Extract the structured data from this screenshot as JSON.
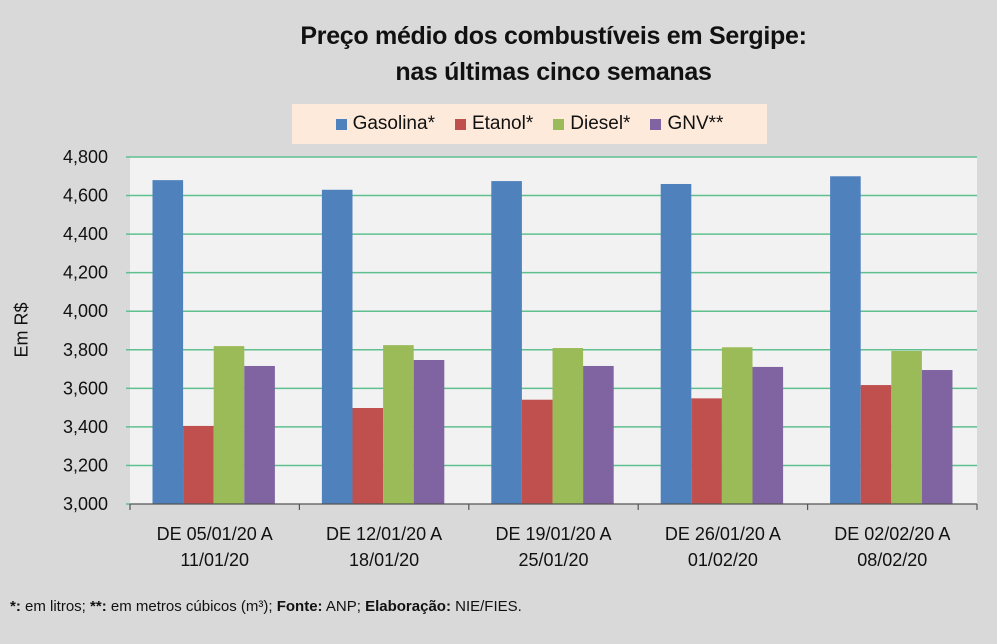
{
  "chart_data": {
    "type": "bar",
    "title": "Preço médio dos combustíveis em Sergipe:",
    "subtitle": "nas últimas cinco semanas",
    "xlabel": "",
    "ylabel": "Em R$",
    "ylim": [
      3000,
      4800
    ],
    "ytick_step": 200,
    "ytick_labels": [
      "3,000",
      "3,200",
      "3,400",
      "3,600",
      "3,800",
      "4,000",
      "4,200",
      "4,400",
      "4,600",
      "4,800"
    ],
    "grid": true,
    "legend_position": "top-center",
    "categories": [
      [
        "DE 05/01/20 A",
        "11/01/20"
      ],
      [
        "DE 12/01/20 A",
        "18/01/20"
      ],
      [
        "DE 19/01/20 A",
        "25/01/20"
      ],
      [
        "DE 26/01/20 A",
        "01/02/20"
      ],
      [
        "DE 02/02/20 A",
        "08/02/20"
      ]
    ],
    "series": [
      {
        "name": "Gasolina*",
        "color": "#4f81bd",
        "values": [
          4680,
          4630,
          4675,
          4660,
          4700
        ]
      },
      {
        "name": "Etanol*",
        "color": "#c0504d",
        "values": [
          3405,
          3498,
          3541,
          3548,
          3617
        ]
      },
      {
        "name": "Diesel*",
        "color": "#9bbb59",
        "values": [
          3819,
          3824,
          3809,
          3813,
          3794
        ]
      },
      {
        "name": "GNV**",
        "color": "#8064a2",
        "values": [
          3716,
          3747,
          3716,
          3711,
          3695
        ]
      }
    ]
  },
  "colors": {
    "background": "#d9d9d9",
    "plot_background": "#f2f2f2",
    "gridline": "#5fbf8f",
    "legend_background": "#fdeada"
  },
  "footnote": {
    "part1_bold": "*:",
    "part1": " em litros; ",
    "part2_bold": "**:",
    "part2": " em metros cúbicos (m³); ",
    "part3_bold": "Fonte:",
    "part3": " ANP; ",
    "part4_bold": "Elaboração:",
    "part4": " NIE/FIES."
  }
}
